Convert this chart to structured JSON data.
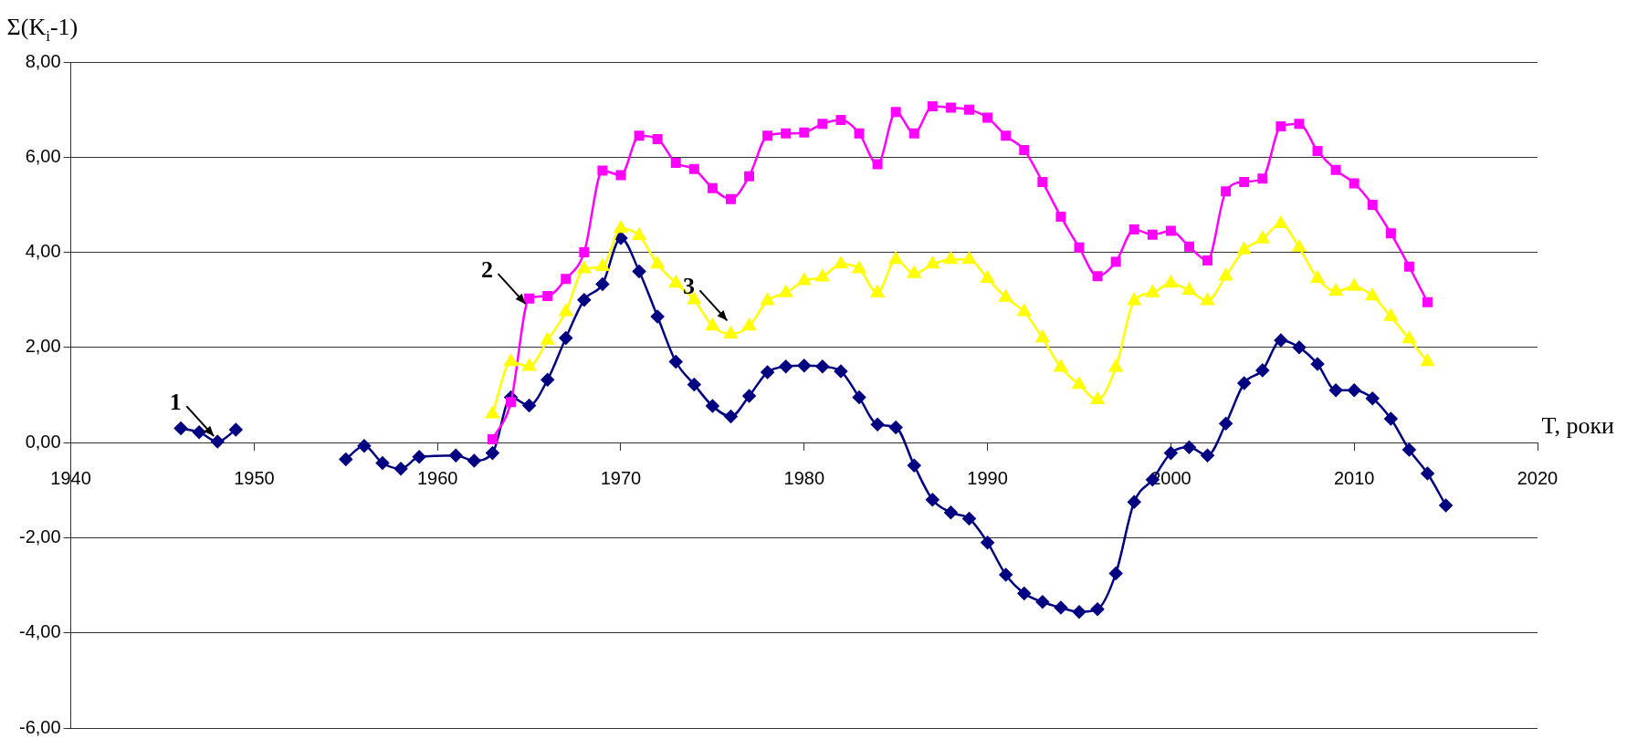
{
  "chart_data": {
    "type": "line",
    "ylabel": "Σ(K$_{i}$-1)",
    "xlabel": "T, роки",
    "xlim": [
      1940,
      2020
    ],
    "xticks": [
      1940,
      1950,
      1960,
      1970,
      1980,
      1990,
      2000,
      2010,
      2020
    ],
    "ylim": [
      -6,
      8
    ],
    "yticks": [
      {
        "value": -6,
        "label": "-6,00"
      },
      {
        "value": -4,
        "label": "-4,00"
      },
      {
        "value": -2,
        "label": "-2,00"
      },
      {
        "value": 0,
        "label": "0,00"
      },
      {
        "value": 2,
        "label": "2,00"
      },
      {
        "value": 4,
        "label": "4,00"
      },
      {
        "value": 6,
        "label": "6,00"
      },
      {
        "value": 8,
        "label": "8,00"
      }
    ],
    "grid": "y",
    "legend": false,
    "series": [
      {
        "color": "#000080",
        "marker": "diamond",
        "x": [
          1946,
          1947,
          1948,
          1949,
          1950,
          1955,
          1956,
          1957,
          1958,
          1959,
          1961,
          1962,
          1963,
          1964,
          1965,
          1966,
          1967,
          1968,
          1969,
          1970,
          1971,
          1972,
          1973,
          1974,
          1975,
          1976,
          1977,
          1978,
          1979,
          1980,
          1981,
          1982,
          1983,
          1984,
          1985,
          1986,
          1987,
          1988,
          1989,
          1990,
          1991,
          1992,
          1993,
          1994,
          1995,
          1996,
          1997,
          1998,
          1999,
          2000,
          2001,
          2002,
          2003,
          2004,
          2005,
          2006,
          2007,
          2008,
          2009,
          2010,
          2011,
          2012,
          2013,
          2014,
          2015
        ],
        "values": [
          0.3,
          0.22,
          0.02,
          0.27,
          null,
          -0.35,
          -0.07,
          -0.43,
          -0.55,
          -0.3,
          -0.27,
          -0.38,
          -0.22,
          0.95,
          0.78,
          1.32,
          2.2,
          3.0,
          3.33,
          4.3,
          3.6,
          2.65,
          1.7,
          1.22,
          0.77,
          0.55,
          0.98,
          1.48,
          1.6,
          1.62,
          1.6,
          1.5,
          0.95,
          0.38,
          0.32,
          -0.48,
          -1.2,
          -1.47,
          -1.6,
          -2.1,
          -2.78,
          -3.17,
          -3.35,
          -3.47,
          -3.56,
          -3.5,
          -2.75,
          -1.25,
          -0.78,
          -0.22,
          -0.1,
          -0.27,
          0.4,
          1.25,
          1.52,
          2.15,
          2.0,
          1.65,
          1.1,
          1.1,
          0.93,
          0.5,
          -0.15,
          -0.65,
          -1.32
        ]
      },
      {
        "color": "#ff00ff",
        "marker": "square",
        "x": [
          1963,
          1964,
          1965,
          1966,
          1967,
          1968,
          1969,
          1970,
          1971,
          1972,
          1973,
          1974,
          1975,
          1976,
          1977,
          1978,
          1979,
          1980,
          1981,
          1982,
          1983,
          1984,
          1985,
          1986,
          1987,
          1988,
          1989,
          1990,
          1991,
          1992,
          1993,
          1994,
          1995,
          1996,
          1997,
          1998,
          1999,
          2000,
          2001,
          2002,
          2003,
          2004,
          2005,
          2006,
          2007,
          2008,
          2009,
          2010,
          2011,
          2012,
          2013,
          2014
        ],
        "values": [
          0.07,
          0.85,
          3.03,
          3.08,
          3.44,
          4.0,
          5.72,
          5.62,
          6.45,
          6.38,
          5.88,
          5.75,
          5.35,
          5.12,
          5.6,
          6.45,
          6.5,
          6.52,
          6.7,
          6.78,
          6.5,
          5.85,
          6.95,
          6.5,
          7.07,
          7.04,
          7.0,
          6.83,
          6.45,
          6.15,
          5.48,
          4.75,
          4.1,
          3.5,
          3.8,
          4.48,
          4.37,
          4.45,
          4.12,
          3.83,
          5.28,
          5.48,
          5.55,
          6.65,
          6.7,
          6.13,
          5.73,
          5.45,
          5.0,
          4.4,
          3.7,
          2.95
        ]
      },
      {
        "color": "#ffff00",
        "marker": "triangle",
        "x": [
          1963,
          1964,
          1965,
          1966,
          1967,
          1968,
          1969,
          1970,
          1971,
          1972,
          1973,
          1974,
          1975,
          1976,
          1977,
          1978,
          1979,
          1980,
          1981,
          1982,
          1983,
          1984,
          1985,
          1986,
          1987,
          1988,
          1989,
          1990,
          1991,
          1992,
          1993,
          1994,
          1995,
          1996,
          1997,
          1998,
          1999,
          2000,
          2001,
          2002,
          2003,
          2004,
          2005,
          2006,
          2007,
          2008,
          2009,
          2010,
          2011,
          2012,
          2013,
          2014
        ],
        "values": [
          0.6,
          1.7,
          1.6,
          2.15,
          2.75,
          3.65,
          3.7,
          4.5,
          4.35,
          3.75,
          3.35,
          3.0,
          2.45,
          2.28,
          2.45,
          2.98,
          3.15,
          3.4,
          3.48,
          3.75,
          3.65,
          3.15,
          3.85,
          3.55,
          3.75,
          3.85,
          3.85,
          3.45,
          3.05,
          2.75,
          2.2,
          1.58,
          1.22,
          0.9,
          1.58,
          2.98,
          3.15,
          3.35,
          3.2,
          2.98,
          3.5,
          4.05,
          4.28,
          4.6,
          4.1,
          3.45,
          3.18,
          3.28,
          3.08,
          2.65,
          2.18,
          1.7
        ]
      }
    ],
    "annotations": [
      {
        "text": "1",
        "x": 1948,
        "y": 0.02
      },
      {
        "text": "2",
        "x": 1965,
        "y": 2.8
      },
      {
        "text": "3",
        "x": 1976,
        "y": 2.45
      }
    ]
  }
}
